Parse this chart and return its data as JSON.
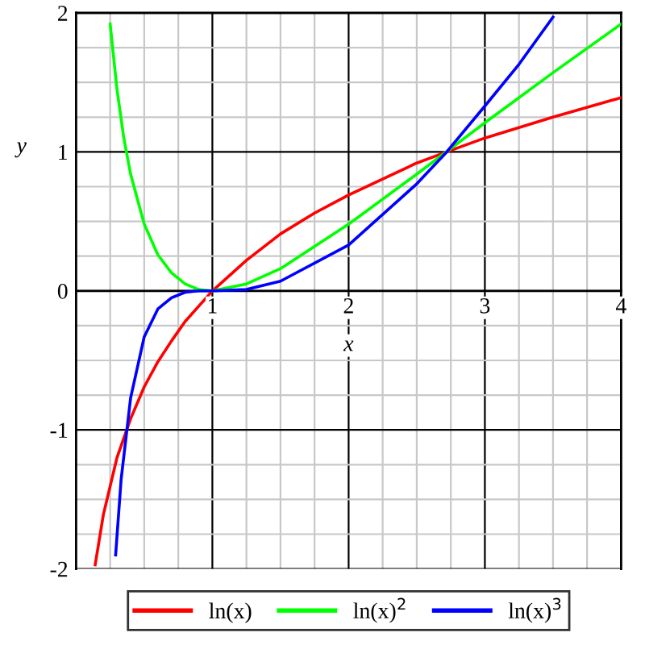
{
  "chart_data": {
    "type": "line",
    "xlabel": "x",
    "ylabel": "y",
    "xlim": [
      0,
      4
    ],
    "ylim": [
      -2,
      2
    ],
    "xticks": [
      {
        "value": 0.25,
        "label": null
      },
      {
        "value": 0.5,
        "label": null
      },
      {
        "value": 0.75,
        "label": null
      },
      1,
      {
        "value": 1.25,
        "label": null
      },
      {
        "value": 1.5,
        "label": null
      },
      {
        "value": 1.75,
        "label": null
      },
      2,
      {
        "value": 2.25,
        "label": null
      },
      {
        "value": 2.5,
        "label": null
      },
      {
        "value": 2.75,
        "label": null
      },
      3,
      {
        "value": 3.25,
        "label": null
      },
      {
        "value": 3.5,
        "label": null
      },
      {
        "value": 3.75,
        "label": null
      },
      4
    ],
    "yticks": [
      -2,
      {
        "value": -1.75,
        "label": null
      },
      {
        "value": -1.5,
        "label": null
      },
      {
        "value": -1.25,
        "label": null
      },
      -1,
      {
        "value": -0.75,
        "label": null
      },
      {
        "value": -0.5,
        "label": null
      },
      {
        "value": -0.25,
        "label": null
      },
      0,
      {
        "value": 0.25,
        "label": null
      },
      {
        "value": 0.5,
        "label": null
      },
      {
        "value": 0.75,
        "label": null
      },
      1,
      {
        "value": 1.25,
        "label": null
      },
      {
        "value": 1.5,
        "label": null
      },
      {
        "value": 1.75,
        "label": null
      },
      2
    ],
    "grid": true,
    "legend": "bottom",
    "marker": "none",
    "line_style": "solid",
    "series": [
      {
        "name": "ln(x)",
        "color": "#ff0000",
        "x": [
          0.14,
          0.2,
          0.3,
          0.4,
          0.5,
          0.6,
          0.7,
          0.8,
          1,
          1.25,
          1.5,
          1.75,
          2,
          2.5,
          2.72,
          3,
          3.5,
          4
        ],
        "values": [
          -1.97,
          -1.61,
          -1.2,
          -0.92,
          -0.69,
          -0.51,
          -0.36,
          -0.22,
          0,
          0.22,
          0.41,
          0.56,
          0.69,
          0.92,
          1,
          1.1,
          1.25,
          1.39
        ]
      },
      {
        "name": "ln(x)$^{2}$",
        "color": "#00ff00",
        "x": [
          0.25,
          0.3,
          0.35,
          0.4,
          0.5,
          0.6,
          0.7,
          0.8,
          0.9,
          1,
          1.25,
          1.5,
          2,
          2.5,
          3,
          3.5,
          4
        ],
        "values": [
          1.92,
          1.45,
          1.1,
          0.84,
          0.48,
          0.26,
          0.13,
          0.05,
          0.01,
          0,
          0.05,
          0.16,
          0.48,
          0.84,
          1.21,
          1.57,
          1.92
        ]
      },
      {
        "name": "ln(x)$^{3}$",
        "color": "#0000ff",
        "x": [
          0.29,
          0.33,
          0.4,
          0.5,
          0.6,
          0.7,
          0.8,
          0.9,
          1,
          1.25,
          1.5,
          2,
          2.5,
          2.72,
          3,
          3.25,
          3.5
        ],
        "values": [
          -1.9,
          -1.36,
          -0.77,
          -0.33,
          -0.13,
          -0.05,
          -0.01,
          0,
          0,
          0.01,
          0.07,
          0.33,
          0.77,
          1,
          1.33,
          1.63,
          1.97
        ]
      }
    ]
  }
}
